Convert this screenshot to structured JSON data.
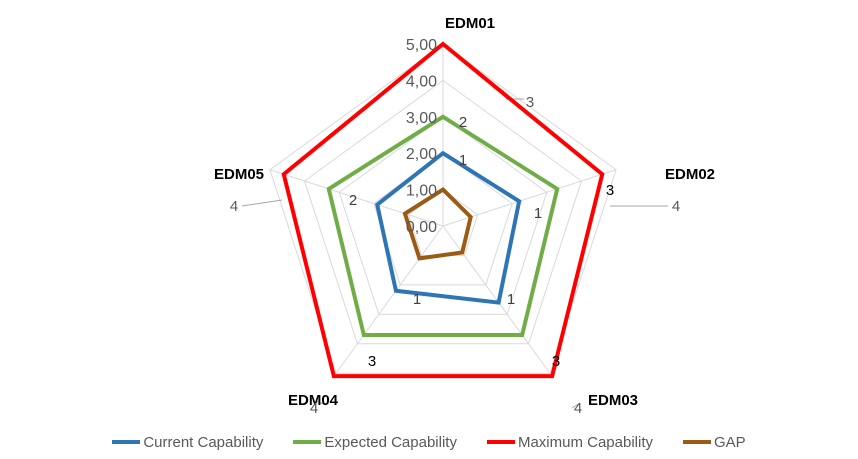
{
  "chart_data": {
    "type": "radar",
    "categories": [
      "EDM01",
      "EDM02",
      "EDM03",
      "EDM04",
      "EDM05"
    ],
    "rlim": [
      0,
      5
    ],
    "tick_labels": [
      "0,00",
      "1,00",
      "2,00",
      "3,00",
      "4,00",
      "5,00"
    ],
    "grid": true,
    "legend_position": "bottom",
    "series": [
      {
        "name": "Current Capability",
        "color": "#2E75B6",
        "values": [
          2,
          2.2,
          2.6,
          2.2,
          1.9
        ]
      },
      {
        "name": "Expected Capability",
        "color": "#70AD47",
        "values": [
          3,
          3.3,
          3.7,
          3.7,
          3.3
        ]
      },
      {
        "name": "Maximum Capability",
        "color": "#FF0000",
        "values": [
          5,
          4.6,
          5.1,
          5.1,
          4.6
        ]
      },
      {
        "name": "GAP",
        "color": "#9C5B14",
        "values": [
          1,
          0.8,
          0.9,
          1.1,
          1.1
        ]
      }
    ],
    "data_labels": [
      {
        "text": "3",
        "color": "#595959"
      },
      {
        "text": "2",
        "color": "#404040"
      },
      {
        "text": "1",
        "color": "#404040"
      },
      {
        "text": "4",
        "color": "#595959"
      },
      {
        "text": "3",
        "color": "#000000"
      },
      {
        "text": "1",
        "color": "#404040"
      },
      {
        "text": "4",
        "color": "#595959"
      },
      {
        "text": "3",
        "color": "#000000"
      },
      {
        "text": "1",
        "color": "#404040"
      },
      {
        "text": "4",
        "color": "#595959"
      },
      {
        "text": "3",
        "color": "#000000"
      },
      {
        "text": "1",
        "color": "#404040"
      },
      {
        "text": "4",
        "color": "#595959"
      },
      {
        "text": "2",
        "color": "#404040"
      }
    ]
  }
}
